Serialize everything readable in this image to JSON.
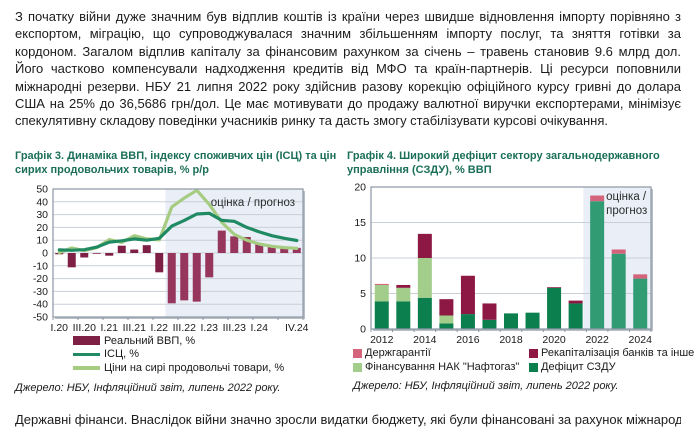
{
  "colors": {
    "chart_title_green": "#1b6f58",
    "forecast_band": "#e9eef7",
    "grid_line": "#c9cfd7",
    "plot_border": "#8d97a3",
    "plot_shadow": "#b9bfc7",
    "body_text": "#1c1c1c"
  },
  "paragraph": "З початку війни дуже значним був відплив коштів із країни через швидше відновлення імпорту порівняно з експортом, міграцію, що супроводжувалася значним збільшенням імпорту послуг, та зняття готівки за кордоном. Загалом відплив капіталу за фінансовим рахунком за січень – травень становив 9.6 млрд дол. Його частково компенсували надходження кредитів від МФО та країн-партнерів. Ці ресурси поповнили міжнародні резерви. НБУ 21 липня 2022 року здійснив разову корекцію офіційного курсу гривні до долара США на 25% до 36,5686 грн/дол. Це має мотивувати до продажу валютної виручки експортерами, мінімізує спекулятивну складову поведінки учасників ринку та дасть змогу стабілізувати курсові очікування.",
  "bottom_clipped_line": "Державні фінанси. Внаслідок війни значно зросли видатки бюджету, які були фінансовані за рахунок міжнародної допомоги та",
  "chart_data": [
    {
      "type": "bar",
      "title": "Графік 3. Динаміка ВВП, індексу споживчих цін (ІСЦ) та цін сирих продовольчих товарів, % р/р",
      "source": "Джерело: НБУ, Інфляційний звіт, липень 2022 року.",
      "forecast_label": "оцінка / прогноз",
      "forecast_start_index": 9,
      "ylim": [
        -50,
        50
      ],
      "ytick_step": 10,
      "grid": true,
      "legend_position": "bottom-left",
      "categories": [
        "І.20",
        "ІІ.20",
        "ІІІ.20",
        "IV.20",
        "І.21",
        "ІІ.21",
        "ІІІ.21",
        "IV.21",
        "І.22",
        "ІІ.22",
        "ІІІ.22",
        "IV.22",
        "І.23",
        "ІІ.23",
        "ІІІ.23",
        "IV.23",
        "І.24",
        "ІІ.24",
        "ІІІ.24",
        "IV.24"
      ],
      "x_tick_labels": [
        "І.20",
        "ІІІ.20",
        "І.21",
        "ІІІ.21",
        "І.22",
        "ІІІ.22",
        "І.23",
        "ІІІ.23",
        "І.24",
        "IV.24"
      ],
      "x_tick_indices": [
        0,
        2,
        4,
        6,
        8,
        10,
        12,
        14,
        16,
        19
      ],
      "series": [
        {
          "name": "Реальний ВВП, %",
          "type": "bar",
          "color": "#7e2046",
          "forecast_color": "#96365c",
          "values": [
            -1.0,
            -11.2,
            -3.5,
            -0.6,
            -2.1,
            5.7,
            2.7,
            6.1,
            -15.1,
            -39.3,
            -37.0,
            -38.0,
            -19.0,
            17.5,
            13.0,
            12.5,
            7.0,
            5.0,
            4.0,
            4.0
          ]
        },
        {
          "name": "ІСЦ, %",
          "type": "line",
          "color": "#208a63",
          "values": [
            2.4,
            2.1,
            2.6,
            4.6,
            8.5,
            9.5,
            11.0,
            10.0,
            11.5,
            21.0,
            25.5,
            30.5,
            31.0,
            25.5,
            24.8,
            20.0,
            16.5,
            13.5,
            11.5,
            9.8
          ]
        },
        {
          "name": "Ціни на сирі продовольчі товари, %",
          "type": "line",
          "color": "#a6cc82",
          "values": [
            0.3,
            4.0,
            1.8,
            4.2,
            10.5,
            8.2,
            13.5,
            11.0,
            10.2,
            36.0,
            43.0,
            49.0,
            38.0,
            24.0,
            14.5,
            10.0,
            7.0,
            5.2,
            4.2,
            3.6
          ]
        }
      ]
    },
    {
      "type": "bar",
      "title": "Графік 4. Широкий дефіцит сектору загальнодержавного управління (СЗДУ), % ВВП",
      "source": "Джерело: НБУ, Інфляційний звіт, липень 2022 року.",
      "forecast_label_line1": "оцінка /",
      "forecast_label_line2": "прогноз",
      "forecast_start_index": 10,
      "ylim": [
        0,
        20
      ],
      "ytick_step": 5,
      "grid": true,
      "legend_position": "bottom",
      "categories": [
        "2012",
        "2013",
        "2014",
        "2015",
        "2016",
        "2017",
        "2018",
        "2019",
        "2020",
        "2021",
        "2022",
        "2023",
        "2024"
      ],
      "x_tick_labels": [
        "2012",
        "2014",
        "2016",
        "2018",
        "2020",
        "2022",
        "2024"
      ],
      "x_tick_indices": [
        0,
        2,
        4,
        6,
        8,
        10,
        12
      ],
      "series": [
        {
          "name": "Дефіцит СЗДУ",
          "color": "#0c7f4e",
          "forecast_color": "#319b74",
          "values": [
            3.9,
            3.9,
            4.4,
            0.8,
            2.1,
            1.3,
            2.2,
            2.3,
            5.8,
            3.6,
            18.0,
            10.6,
            7.1
          ]
        },
        {
          "name": "Фінансування НАК \"Нафтогаз\"",
          "color": "#a2cd8a",
          "values": [
            2.3,
            1.9,
            5.6,
            1.1,
            0,
            0,
            0,
            0,
            0,
            0,
            0,
            0,
            0
          ]
        },
        {
          "name": "Рекапіталізація банків та інше",
          "color": "#8c1843",
          "values": [
            0,
            0.4,
            3.4,
            2.3,
            5.4,
            2.3,
            0,
            0,
            0.1,
            0.4,
            0,
            0,
            0
          ]
        },
        {
          "name": "Держгарантії",
          "color": "#d4647c",
          "values": [
            0.15,
            0,
            0,
            0,
            0,
            0,
            0,
            0,
            0,
            0,
            0.8,
            0.6,
            0.6
          ]
        }
      ],
      "legend_indices": [
        3,
        2,
        1,
        0
      ]
    }
  ]
}
